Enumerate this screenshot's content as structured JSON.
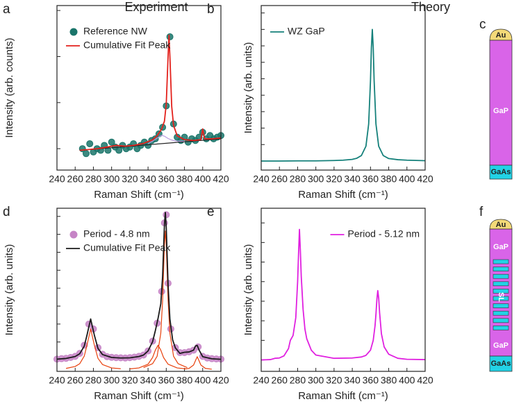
{
  "chart_data": [
    {
      "type": "line",
      "panel": "a",
      "title": "Experiment",
      "xlabel": "Raman Shift (cm⁻¹)",
      "ylabel": "Intensity (arb. counts)",
      "xlim": [
        240,
        420
      ],
      "xticks": [
        240,
        260,
        280,
        300,
        320,
        340,
        360,
        380,
        400,
        420
      ],
      "ylim": [
        0,
        10
      ],
      "yticks": [
        1.3,
        4.1,
        6.9,
        9.7
      ],
      "ytick_labels": false,
      "legend": "upper left",
      "series": [
        {
          "name": "Reference NW",
          "type": "scatter",
          "color": "#1f8a7d",
          "x": [
            268,
            272,
            276,
            280,
            284,
            288,
            292,
            296,
            300,
            304,
            308,
            312,
            316,
            320,
            324,
            328,
            332,
            336,
            340,
            344,
            348,
            352,
            356,
            360,
            364,
            368,
            372,
            376,
            380,
            384,
            388,
            392,
            396,
            400,
            404,
            408,
            412,
            416,
            420
          ],
          "values": [
            1.3,
            1.0,
            1.6,
            1.1,
            1.3,
            1.2,
            1.5,
            1.2,
            1.7,
            1.4,
            1.2,
            1.5,
            1.3,
            1.4,
            1.6,
            1.3,
            1.5,
            1.7,
            1.5,
            1.8,
            1.9,
            2.2,
            2.6,
            3.9,
            8.1,
            2.8,
            2.0,
            1.8,
            2.0,
            1.7,
            1.9,
            1.8,
            2.0,
            2.3,
            1.9,
            2.1,
            1.9,
            2.0,
            2.1
          ]
        },
        {
          "type": "line",
          "color": "#222222",
          "x": [
            265,
            420
          ],
          "values": [
            1.2,
            1.9
          ]
        },
        {
          "type": "line",
          "color": "#b99be0",
          "x": [
            340,
            345,
            350,
            355,
            358,
            360,
            362,
            364,
            366,
            370,
            375,
            380
          ],
          "values": [
            1.6,
            1.76,
            1.94,
            2.11,
            2.06,
            1.99,
            1.92,
            1.87,
            1.83,
            1.77,
            1.75,
            1.76
          ]
        },
        {
          "name": "Cumulative Fit Peak",
          "type": "line",
          "color": "#e3211c",
          "x": [
            265,
            275,
            285,
            295,
            305,
            315,
            325,
            335,
            345,
            350,
            355,
            358,
            360,
            362,
            363,
            364,
            366,
            368,
            372,
            380,
            390,
            398,
            400,
            402,
            410,
            420
          ],
          "values": [
            1.2,
            1.25,
            1.3,
            1.4,
            1.5,
            1.45,
            1.51,
            1.62,
            1.84,
            2.09,
            2.5,
            2.97,
            4.02,
            6.9,
            8.2,
            6.9,
            3.86,
            2.72,
            2.08,
            1.85,
            1.8,
            1.85,
            2.5,
            1.9,
            1.9,
            1.95
          ]
        }
      ]
    },
    {
      "type": "line",
      "panel": "b",
      "title": "Theory",
      "xlabel": "Raman Shift (cm⁻¹)",
      "ylabel": "Intensity (arb. units)",
      "xlim": [
        240,
        420
      ],
      "xticks": [
        240,
        260,
        280,
        300,
        320,
        340,
        360,
        380,
        400,
        420
      ],
      "ylim": [
        0,
        10
      ],
      "yticks": [
        0.55,
        1.55,
        2.55,
        3.55,
        4.55,
        5.55,
        6.55,
        7.55,
        8.55,
        9.55
      ],
      "ytick_labels": false,
      "legend": "upper left",
      "series": [
        {
          "name": "WZ GaP",
          "type": "line",
          "color": "#14807a",
          "x": [
            240,
            260,
            280,
            300,
            320,
            330,
            340,
            345,
            350,
            355,
            358,
            360,
            361,
            362,
            363,
            364,
            366,
            369,
            374,
            380,
            390,
            400,
            420
          ],
          "values": [
            0.55,
            0.55,
            0.56,
            0.56,
            0.58,
            0.6,
            0.65,
            0.72,
            0.88,
            1.45,
            2.8,
            5.43,
            7.45,
            8.55,
            7.45,
            5.43,
            2.8,
            1.45,
            0.88,
            0.7,
            0.63,
            0.6,
            0.57
          ]
        }
      ]
    },
    {
      "type": "line",
      "panel": "d",
      "xlabel": "Raman Shift (cm⁻¹)",
      "ylabel": "Intensity (arb. units)",
      "xlim": [
        240,
        420
      ],
      "xticks": [
        240,
        260,
        280,
        300,
        320,
        340,
        360,
        380,
        400,
        420
      ],
      "ylim": [
        0,
        10
      ],
      "yticks": [
        0.7,
        1.8,
        2.9,
        4.0,
        5.1,
        6.2,
        7.3,
        8.4,
        9.5
      ],
      "ytick_labels": false,
      "legend": "upper left",
      "series": [
        {
          "name": "Period - 4.8 nm",
          "type": "scatter",
          "color": "#e99be9",
          "x": [
            240,
            245,
            250,
            255,
            260,
            265,
            270,
            275,
            280,
            285,
            290,
            295,
            300,
            305,
            310,
            315,
            320,
            325,
            330,
            335,
            340,
            345,
            350,
            355,
            358,
            360,
            362,
            365,
            370,
            375,
            380,
            385,
            390,
            395,
            400,
            405,
            410,
            415,
            420
          ],
          "values": [
            0.75,
            0.78,
            0.8,
            0.85,
            0.92,
            1.1,
            1.6,
            2.9,
            2.6,
            1.45,
            1.05,
            0.9,
            0.86,
            0.84,
            0.83,
            0.82,
            0.84,
            0.87,
            0.92,
            1.0,
            1.25,
            1.85,
            2.95,
            4.9,
            9.1,
            9.6,
            5.4,
            2.6,
            1.45,
            1.15,
            1.15,
            1.2,
            1.3,
            1.5,
            0.92,
            0.82,
            0.78,
            0.76,
            0.75
          ]
        },
        {
          "type": "line",
          "color": "#e8400c",
          "x": [
            250,
            260,
            265,
            270,
            273,
            277,
            281,
            285,
            290,
            300,
            310
          ],
          "values": [
            0.18,
            0.3,
            0.47,
            0.94,
            1.62,
            2.6,
            1.62,
            0.8,
            0.42,
            0.21,
            0.16
          ]
        },
        {
          "type": "line",
          "color": "#e8400c",
          "x": [
            320,
            330,
            340,
            345,
            348,
            351,
            354,
            357,
            362,
            372,
            382
          ],
          "values": [
            0.15,
            0.21,
            0.44,
            0.85,
            1.3,
            1.6,
            1.3,
            0.85,
            0.44,
            0.21,
            0.15
          ]
        },
        {
          "type": "line",
          "color": "#e8400c",
          "x": [
            335,
            345,
            350,
            354,
            356,
            358,
            359,
            360,
            362,
            364,
            368,
            373,
            383
          ],
          "values": [
            0.23,
            0.47,
            0.93,
            2.34,
            4.35,
            7.75,
            8.6,
            7.75,
            4.35,
            2.34,
            0.93,
            0.47,
            0.23
          ]
        },
        {
          "type": "line",
          "color": "#e8400c",
          "x": [
            380,
            385,
            390,
            392,
            394,
            396,
            398,
            403,
            410
          ],
          "values": [
            0.14,
            0.18,
            0.39,
            0.65,
            0.9,
            0.65,
            0.39,
            0.18,
            0.13
          ]
        },
        {
          "name": "Cumulative Fit Peak",
          "type": "line",
          "color": "#1a1a1a",
          "x": [
            240,
            250,
            260,
            265,
            270,
            273,
            277,
            281,
            285,
            290,
            300,
            310,
            320,
            330,
            335,
            340,
            345,
            348,
            351,
            354,
            356,
            358,
            359,
            360,
            362,
            364,
            367,
            370,
            375,
            380,
            385,
            390,
            392,
            394,
            396,
            400,
            410,
            420
          ],
          "values": [
            0.75,
            0.79,
            0.91,
            1.08,
            1.55,
            2.23,
            3.21,
            2.23,
            1.41,
            1.03,
            0.85,
            0.82,
            0.83,
            0.91,
            1.0,
            1.25,
            1.82,
            2.49,
            3.25,
            4.14,
            5.84,
            8.99,
            9.74,
            8.81,
            5.29,
            3.21,
            1.93,
            1.44,
            1.1,
            1.17,
            1.19,
            1.3,
            1.55,
            1.59,
            1.31,
            0.9,
            0.77,
            0.74
          ]
        }
      ]
    },
    {
      "type": "line",
      "panel": "e",
      "xlabel": "Raman Shift (cm⁻¹)",
      "ylabel": "Intensity (arb. units)",
      "xlim": [
        240,
        420
      ],
      "xticks": [
        240,
        260,
        280,
        300,
        320,
        340,
        360,
        380,
        400,
        420
      ],
      "ylim": [
        0,
        10
      ],
      "yticks": [
        0.7,
        1.9,
        3.1,
        4.3,
        5.5,
        6.7,
        7.9,
        9.1
      ],
      "ytick_labels": false,
      "legend": "upper right",
      "series": [
        {
          "name": "Period - 5.12 nm",
          "type": "line",
          "color": "#e020e0",
          "x": [
            240,
            250,
            255,
            260,
            265,
            270,
            272,
            275,
            278,
            280,
            281,
            282,
            283,
            284,
            286,
            288,
            290,
            295,
            300,
            320,
            340,
            350,
            355,
            360,
            363,
            365,
            366,
            367,
            368,
            369,
            370,
            372,
            375,
            380,
            390,
            400,
            420
          ],
          "values": [
            0.7,
            0.72,
            0.8,
            0.82,
            0.95,
            1.4,
            1.9,
            2.2,
            3.3,
            5.5,
            7.2,
            8.7,
            7.4,
            5.8,
            3.8,
            2.6,
            2.0,
            1.3,
            1.0,
            0.8,
            0.82,
            0.88,
            0.98,
            1.3,
            1.9,
            2.8,
            3.5,
            4.4,
            4.95,
            4.5,
            3.6,
            2.3,
            1.5,
            1.05,
            0.8,
            0.74,
            0.72
          ]
        }
      ]
    }
  ],
  "diagrams": [
    {
      "panel": "c",
      "labels": [
        "Au",
        "GaP",
        "GaAs"
      ]
    },
    {
      "panel": "f",
      "labels": [
        "Au",
        "GaP",
        "SL",
        "GaP",
        "GaAs"
      ]
    }
  ]
}
